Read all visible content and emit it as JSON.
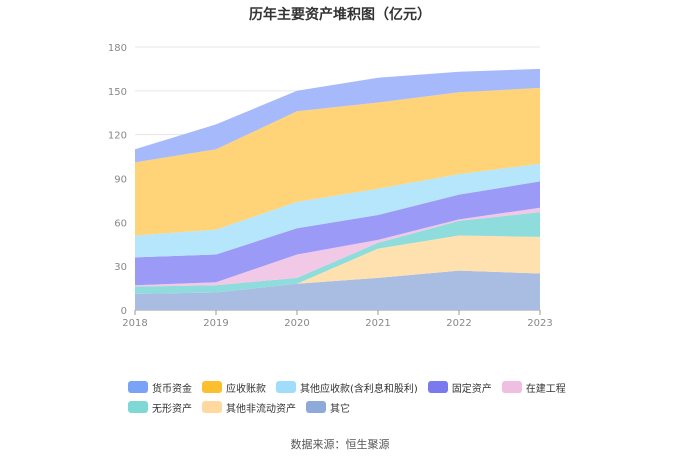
{
  "chart_data": {
    "type": "area",
    "title": "历年主要资产堆积图（亿元）",
    "x": [
      "2018",
      "2019",
      "2020",
      "2021",
      "2022",
      "2023"
    ],
    "ylim": [
      0,
      180
    ],
    "yticks": [
      0,
      30,
      60,
      90,
      120,
      150,
      180
    ],
    "stacked": true,
    "grid": true,
    "legend_position": "bottom",
    "series": [
      {
        "name": "其它",
        "color": "#a9bde3",
        "values": [
          11,
          12,
          18,
          22,
          27,
          25
        ]
      },
      {
        "name": "其他非流动资产",
        "color": "#ffe1b0",
        "values": [
          0,
          0,
          0,
          20,
          24,
          25
        ]
      },
      {
        "name": "无形资产",
        "color": "#8fdcdc",
        "values": [
          5,
          5,
          4,
          4,
          10,
          17
        ]
      },
      {
        "name": "在建工程",
        "color": "#f1c8e5",
        "values": [
          1,
          2,
          16,
          2,
          1,
          3
        ]
      },
      {
        "name": "固定资产",
        "color": "#9c9af7",
        "values": [
          19,
          19,
          18,
          17,
          17,
          18
        ]
      },
      {
        "name": "其他应收款(含利息和股利)",
        "color": "#b5e6fb",
        "values": [
          15,
          17,
          18,
          18,
          14,
          12
        ]
      },
      {
        "name": "应收账款",
        "color": "#ffd478",
        "values": [
          50,
          55,
          62,
          59,
          56,
          52
        ]
      },
      {
        "name": "货币资金",
        "color": "#a6b9fb",
        "values": [
          9,
          17,
          14,
          17,
          14,
          13
        ]
      }
    ]
  },
  "legend": {
    "row1": [
      {
        "label": "货币资金",
        "color": "#7aa2f7"
      },
      {
        "label": "应收账款",
        "color": "#fbbf2f"
      },
      {
        "label": "其他应收款(含利息和股利)",
        "color": "#9fddfa"
      },
      {
        "label": "固定资产",
        "color": "#7b79ee"
      },
      {
        "label": "在建工程",
        "color": "#eebfe0"
      }
    ],
    "row2": [
      {
        "label": "无形资产",
        "color": "#7fd8d6"
      },
      {
        "label": "其他非流动资产",
        "color": "#ffd9a0"
      },
      {
        "label": "其它",
        "color": "#8eaad8"
      }
    ]
  },
  "source": "数据来源：恒生聚源"
}
